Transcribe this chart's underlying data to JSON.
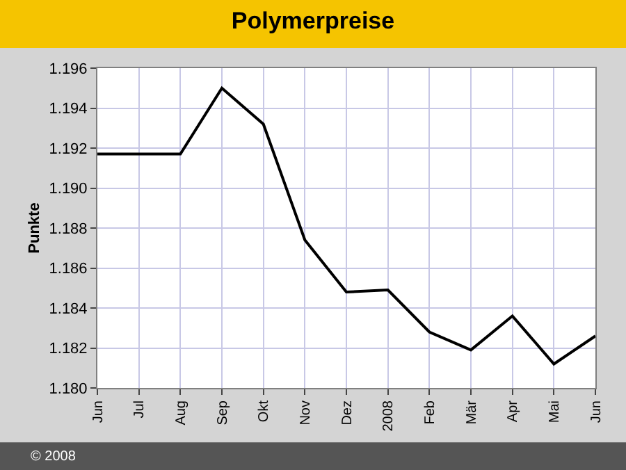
{
  "chart_data": {
    "type": "line",
    "title": "Polymerpreise",
    "ylabel": "Punkte",
    "categories": [
      "Jun",
      "Jul",
      "Aug",
      "Sep",
      "Okt",
      "Nov",
      "Dez",
      "2008",
      "Feb",
      "Mär",
      "Apr",
      "Mai",
      "Jun"
    ],
    "series": [
      {
        "color": "#000000",
        "values": [
          1.1917,
          1.1917,
          1.1917,
          1.195,
          1.1932,
          1.1874,
          1.1848,
          1.1849,
          1.1828,
          1.1819,
          1.1836,
          1.1812,
          1.1826
        ]
      }
    ],
    "ylim": [
      1.18,
      1.196
    ],
    "yticks": [
      {
        "value": 1.18,
        "label": "1.180"
      },
      1.182,
      1.184,
      1.186,
      1.188,
      {
        "value": 1.19,
        "label": "1.190"
      },
      1.192,
      1.194,
      1.196
    ],
    "grid": true,
    "marker": "none",
    "line_style": "solid",
    "annotations": [
      "© 2008"
    ]
  }
}
